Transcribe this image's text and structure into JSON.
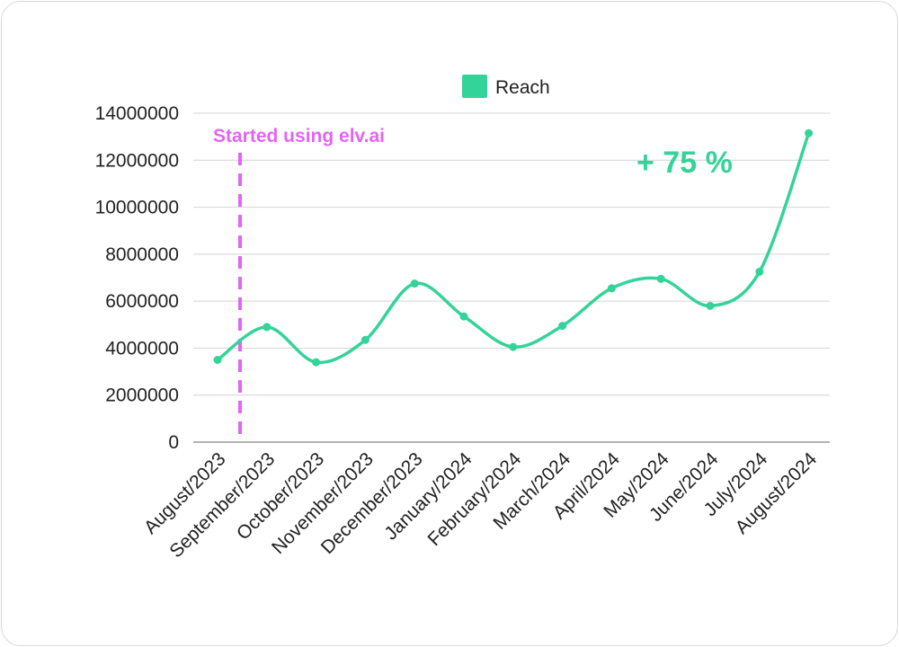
{
  "chart_data": {
    "type": "line",
    "categories": [
      "August/2023",
      "September/2023",
      "October/2023",
      "November/2023",
      "December/2023",
      "January/2024",
      "February/2024",
      "March/2024",
      "April/2024",
      "May/2024",
      "June/2024",
      "July/2024",
      "August/2024"
    ],
    "series": [
      {
        "name": "Reach",
        "color": "#34d399",
        "values": [
          3500000,
          4900000,
          3400000,
          4350000,
          6750000,
          5350000,
          4050000,
          4950000,
          6550000,
          6950000,
          5800000,
          7250000,
          13150000
        ]
      }
    ],
    "yticks": [
      "0",
      "2000000",
      "4000000",
      "6000000",
      "8000000",
      "10000000",
      "12000000",
      "14000000"
    ],
    "ylim": [
      0,
      14000000
    ],
    "grid": true,
    "legend_position": "top-center",
    "annotations": {
      "start_label": "Started using elv.ai",
      "start_color": "#e265f5",
      "start_after_category_index": 0,
      "growth_label": "+ 75 %",
      "growth_color": "#34d399"
    }
  }
}
